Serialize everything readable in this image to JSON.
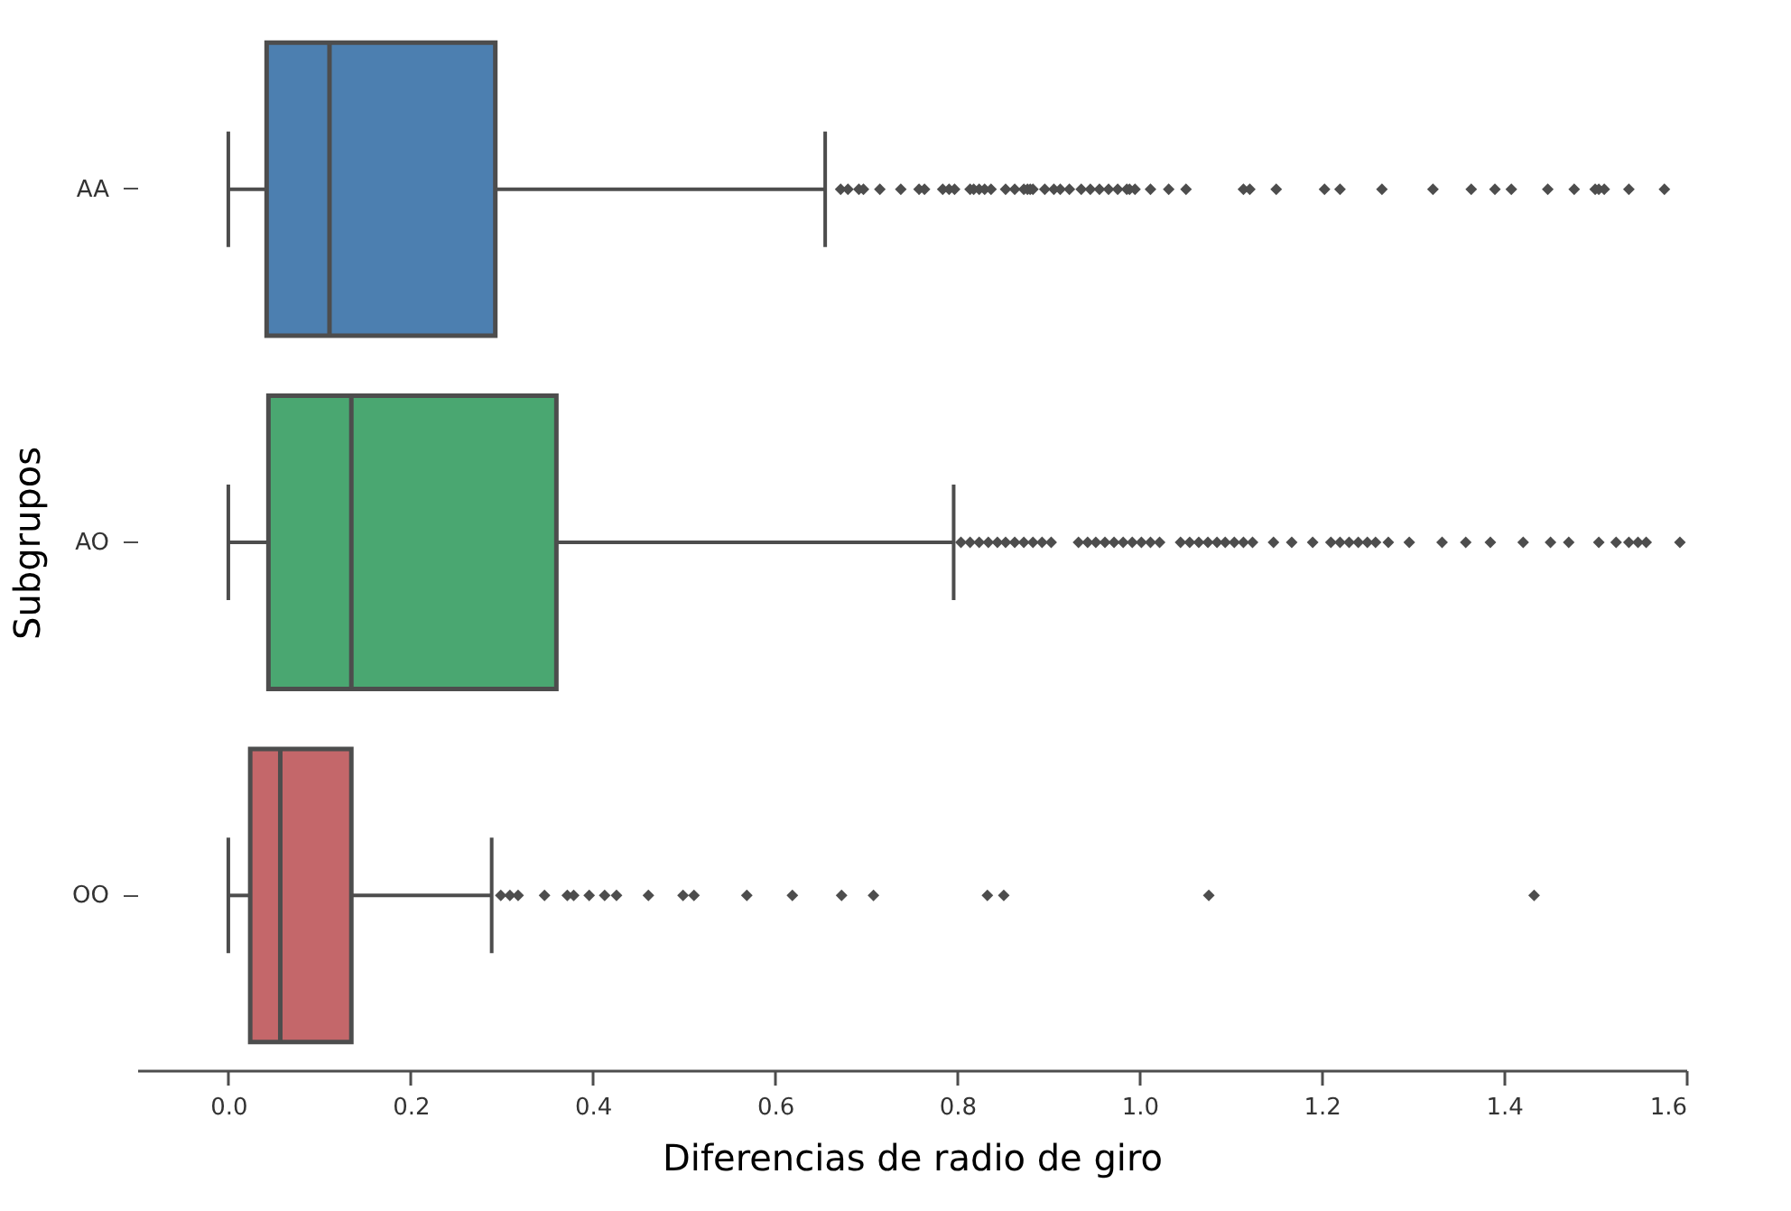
{
  "chart_data": {
    "type": "box",
    "orientation": "horizontal",
    "xlabel": "Diferencias de radio de giro",
    "ylabel": "Subgrupos",
    "categories": [
      "AA",
      "AO",
      "OO"
    ],
    "colors": [
      "#4c7fb0",
      "#4aa771",
      "#c4676a"
    ],
    "xlim": [
      -0.1,
      1.6
    ],
    "xticks": [
      {
        "value": 0,
        "label": "0.0"
      },
      0.2,
      0.4,
      0.6,
      0.8,
      {
        "value": 1,
        "label": "1.0"
      },
      1.2,
      1.4,
      1.6
    ],
    "grid": false,
    "legend": false,
    "marker": "diamond",
    "boxes": [
      {
        "low": 0.0,
        "q1": 0.042,
        "median": 0.111,
        "q3": 0.293,
        "high": 0.655,
        "outliers": [
          0.672,
          0.68,
          0.692,
          0.697,
          0.715,
          0.738,
          0.758,
          0.764,
          0.784,
          0.791,
          0.797,
          0.814,
          0.818,
          0.824,
          0.83,
          0.837,
          0.853,
          0.863,
          0.873,
          0.877,
          0.88,
          0.883,
          0.896,
          0.906,
          0.913,
          0.923,
          0.936,
          0.946,
          0.956,
          0.966,
          0.976,
          0.986,
          0.989,
          0.995,
          1.012,
          1.032,
          1.051,
          1.114,
          1.121,
          1.15,
          1.203,
          1.22,
          1.266,
          1.322,
          1.364,
          1.39,
          1.408,
          1.448,
          1.477,
          1.5,
          1.504,
          1.51,
          1.537,
          1.576
        ]
      },
      {
        "low": 0.0,
        "q1": 0.044,
        "median": 0.135,
        "q3": 0.36,
        "high": 0.796,
        "outliers": [
          0.804,
          0.814,
          0.824,
          0.834,
          0.844,
          0.853,
          0.863,
          0.873,
          0.883,
          0.893,
          0.903,
          0.933,
          0.943,
          0.952,
          0.962,
          0.972,
          0.982,
          0.992,
          1.002,
          1.012,
          1.022,
          1.045,
          1.055,
          1.065,
          1.075,
          1.085,
          1.094,
          1.104,
          1.114,
          1.124,
          1.147,
          1.167,
          1.19,
          1.21,
          1.22,
          1.23,
          1.24,
          1.25,
          1.259,
          1.273,
          1.296,
          1.332,
          1.358,
          1.385,
          1.421,
          1.451,
          1.471,
          1.504,
          1.523,
          1.537,
          1.547,
          1.556,
          1.593
        ]
      },
      {
        "low": 0.0,
        "q1": 0.024,
        "median": 0.057,
        "q3": 0.135,
        "high": 0.289,
        "outliers": [
          0.299,
          0.309,
          0.318,
          0.347,
          0.372,
          0.379,
          0.396,
          0.413,
          0.426,
          0.461,
          0.499,
          0.511,
          0.569,
          0.619,
          0.673,
          0.708,
          0.833,
          0.851,
          1.076,
          1.433
        ]
      }
    ]
  }
}
